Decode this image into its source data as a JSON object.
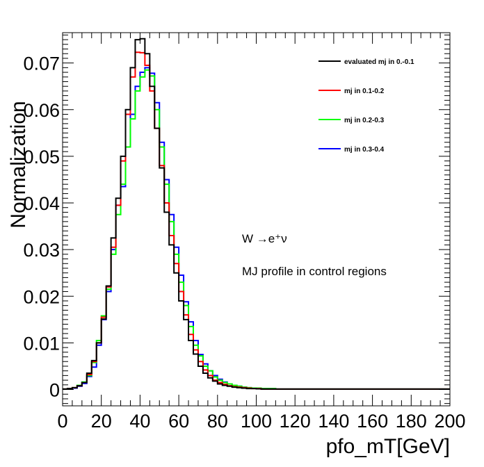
{
  "chart_data": {
    "type": "line",
    "title": "",
    "xlabel": "pfo_mT[GeV]",
    "ylabel": "Normalization",
    "xlim": [
      0,
      200
    ],
    "ylim": [
      -0.0035,
      0.0765
    ],
    "bin_width": 2.5,
    "x_ticks": [
      0,
      20,
      40,
      60,
      80,
      100,
      120,
      140,
      160,
      180,
      200
    ],
    "x_tick_labels": [
      "0",
      "20",
      "40",
      "60",
      "80",
      "100",
      "120",
      "140",
      "160",
      "180",
      "200"
    ],
    "y_ticks": [
      0,
      0.01,
      0.02,
      0.03,
      0.04,
      0.05,
      0.06,
      0.07
    ],
    "y_tick_labels": [
      "0",
      "0.01",
      "0.02",
      "0.03",
      "0.04",
      "0.05",
      "0.06",
      "0.07"
    ],
    "legend_position": "top-right",
    "annotations": {
      "process": "W →e⁺ν",
      "description": "MJ profile in control regions"
    },
    "series": [
      {
        "name": "evaluated mj in 0.-0.1",
        "color": "#000000",
        "values": [
          0.0001,
          0.0002,
          0.0004,
          0.0008,
          0.0015,
          0.0035,
          0.0062,
          0.01,
          0.0151,
          0.0222,
          0.0325,
          0.041,
          0.05,
          0.06,
          0.069,
          0.075,
          0.0752,
          0.072,
          0.065,
          0.056,
          0.0475,
          0.038,
          0.031,
          0.025,
          0.019,
          0.015,
          0.0105,
          0.0076,
          0.005,
          0.0035,
          0.0025,
          0.0018,
          0.0012,
          0.0009,
          0.0007,
          0.0005,
          0.0004,
          0.0003,
          0.0002,
          0.0002,
          0.00015,
          0.0001,
          0.0001,
          0.0001,
          0.0001,
          0.0001,
          0.0001,
          0.0001,
          0.0001,
          0.0001,
          0.0001,
          0.0001,
          0.0001,
          0.0001,
          0.0001,
          0.0001,
          0.0001,
          0.0001,
          0.0001,
          0.0001,
          0.0001,
          0.0001,
          0.0001,
          0.0001,
          0.0001,
          0.0001,
          0.0001,
          0.0001,
          0.0001,
          0.0001,
          0.0001,
          0.0001,
          0.0001,
          0.0001,
          0.0001,
          0.0001,
          0.0001,
          0.0001,
          0.0001,
          0.0001
        ]
      },
      {
        "name": "mj in 0.1-0.2",
        "color": "#ff0000",
        "values": [
          0.0001,
          0.0002,
          0.0004,
          0.0008,
          0.0015,
          0.0032,
          0.006,
          0.01,
          0.0155,
          0.022,
          0.0305,
          0.0395,
          0.049,
          0.059,
          0.067,
          0.0723,
          0.0722,
          0.0695,
          0.064,
          0.056,
          0.048,
          0.04,
          0.033,
          0.027,
          0.021,
          0.016,
          0.0118,
          0.0085,
          0.006,
          0.0042,
          0.003,
          0.002,
          0.0015,
          0.0011,
          0.0008,
          0.0006,
          0.0005,
          0.0004,
          0.0003,
          0.0002,
          0.0002,
          0.0001,
          0.0001,
          0.0001,
          0.0001,
          0.0001,
          0.0001,
          0.0001,
          0.0001,
          0.0001,
          0.0001,
          0.0001,
          0.0001,
          0.0001,
          0.0001,
          0.0001,
          0.0001,
          0.0001,
          0.0001,
          0.0001,
          0.0001,
          0.0001,
          0.0001,
          0.0001,
          0.0001,
          0.0001,
          0.0001,
          0.0001,
          0.0001,
          0.0001,
          0.0001,
          0.0001,
          0.0001,
          0.0001,
          0.0001,
          0.0001,
          0.0001,
          0.0001,
          0.0001,
          0.0001
        ]
      },
      {
        "name": "mj in 0.2-0.3",
        "color": "#00ff00",
        "values": [
          0.0001,
          0.0002,
          0.0004,
          0.0009,
          0.0016,
          0.003,
          0.0058,
          0.0105,
          0.0158,
          0.0215,
          0.029,
          0.0375,
          0.044,
          0.052,
          0.058,
          0.064,
          0.067,
          0.0685,
          0.0672,
          0.06,
          0.052,
          0.044,
          0.036,
          0.029,
          0.023,
          0.018,
          0.0135,
          0.0095,
          0.0072,
          0.005,
          0.004,
          0.0027,
          0.002,
          0.0015,
          0.0012,
          0.0009,
          0.0007,
          0.0005,
          0.0004,
          0.0003,
          0.0003,
          0.0002,
          0.0002,
          0.0002,
          0.0001,
          0.0001,
          0.0001,
          0.0001,
          0.0001,
          0.0001,
          0.0001,
          0.0001,
          0.0001,
          0.0001,
          0.0001,
          0.0001,
          0.0001,
          0.0001,
          0.0001,
          0.0001,
          0.0001,
          0.0001,
          0.0001,
          0.0001,
          0.0001,
          0.0001,
          0.0001,
          0.0001,
          0.0001,
          0.0001,
          0.0001,
          0.0001,
          0.0001,
          0.0001,
          0.0001,
          0.0001,
          0.0001,
          0.0001,
          0.0001,
          0.0001
        ]
      },
      {
        "name": "mj in 0.3-0.4",
        "color": "#0000ff",
        "values": [
          0.0001,
          0.0002,
          0.0003,
          0.0007,
          0.0013,
          0.0028,
          0.0048,
          0.0095,
          0.015,
          0.021,
          0.03,
          0.0395,
          0.0435,
          0.052,
          0.059,
          0.065,
          0.068,
          0.069,
          0.0678,
          0.0615,
          0.053,
          0.045,
          0.0375,
          0.0305,
          0.0245,
          0.0188,
          0.0145,
          0.0105,
          0.0075,
          0.0055,
          0.004,
          0.003,
          0.0022,
          0.0016,
          0.0012,
          0.0009,
          0.0007,
          0.0005,
          0.0004,
          0.0003,
          0.0003,
          0.0002,
          0.0002,
          0.0002,
          0.0001,
          0.0001,
          0.0001,
          0.0001,
          0.0001,
          0.0001,
          0.0001,
          0.0001,
          0.0001,
          0.0001,
          0.0001,
          0.0001,
          0.0001,
          0.0001,
          0.0001,
          0.0001,
          0.0001,
          0.0001,
          0.0001,
          0.0001,
          0.0001,
          0.0001,
          0.0001,
          0.0001,
          0.0001,
          0.0001,
          0.0001,
          0.0001,
          0.0001,
          0.0001,
          0.0001,
          0.0001,
          0.0001,
          0.0001,
          0.0001,
          0.0001
        ]
      }
    ]
  }
}
